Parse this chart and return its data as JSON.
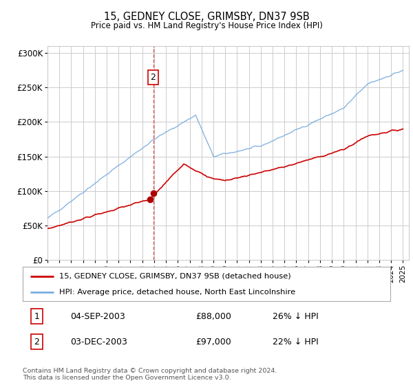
{
  "title": "15, GEDNEY CLOSE, GRIMSBY, DN37 9SB",
  "subtitle": "Price paid vs. HM Land Registry's House Price Index (HPI)",
  "ylabel_ticks": [
    "£0",
    "£50K",
    "£100K",
    "£150K",
    "£200K",
    "£250K",
    "£300K"
  ],
  "ylim": [
    0,
    310000
  ],
  "yticks": [
    0,
    50000,
    100000,
    150000,
    200000,
    250000,
    300000
  ],
  "xlim_start": 1995.0,
  "xlim_end": 2025.5,
  "sale1_date_x": 2003.67,
  "sale1_price": 88000,
  "sale1_label": "1",
  "sale1_date_str": "04-SEP-2003",
  "sale1_price_str": "£88,000",
  "sale1_pct_str": "26% ↓ HPI",
  "sale2_date_x": 2003.92,
  "sale2_price": 97000,
  "sale2_label": "2",
  "sale2_date_str": "03-DEC-2003",
  "sale2_price_str": "£97,000",
  "sale2_pct_str": "22% ↓ HPI",
  "line_color_property": "#cc0000",
  "line_color_hpi": "#7aacde",
  "marker_color": "#aa0000",
  "vline_color": "#dd4444",
  "grid_color": "#cccccc",
  "background_color": "#ffffff",
  "legend_label_property": "15, GEDNEY CLOSE, GRIMSBY, DN37 9SB (detached house)",
  "legend_label_hpi": "HPI: Average price, detached house, North East Lincolnshire",
  "footer_line1": "Contains HM Land Registry data © Crown copyright and database right 2024.",
  "footer_line2": "This data is licensed under the Open Government Licence v3.0."
}
